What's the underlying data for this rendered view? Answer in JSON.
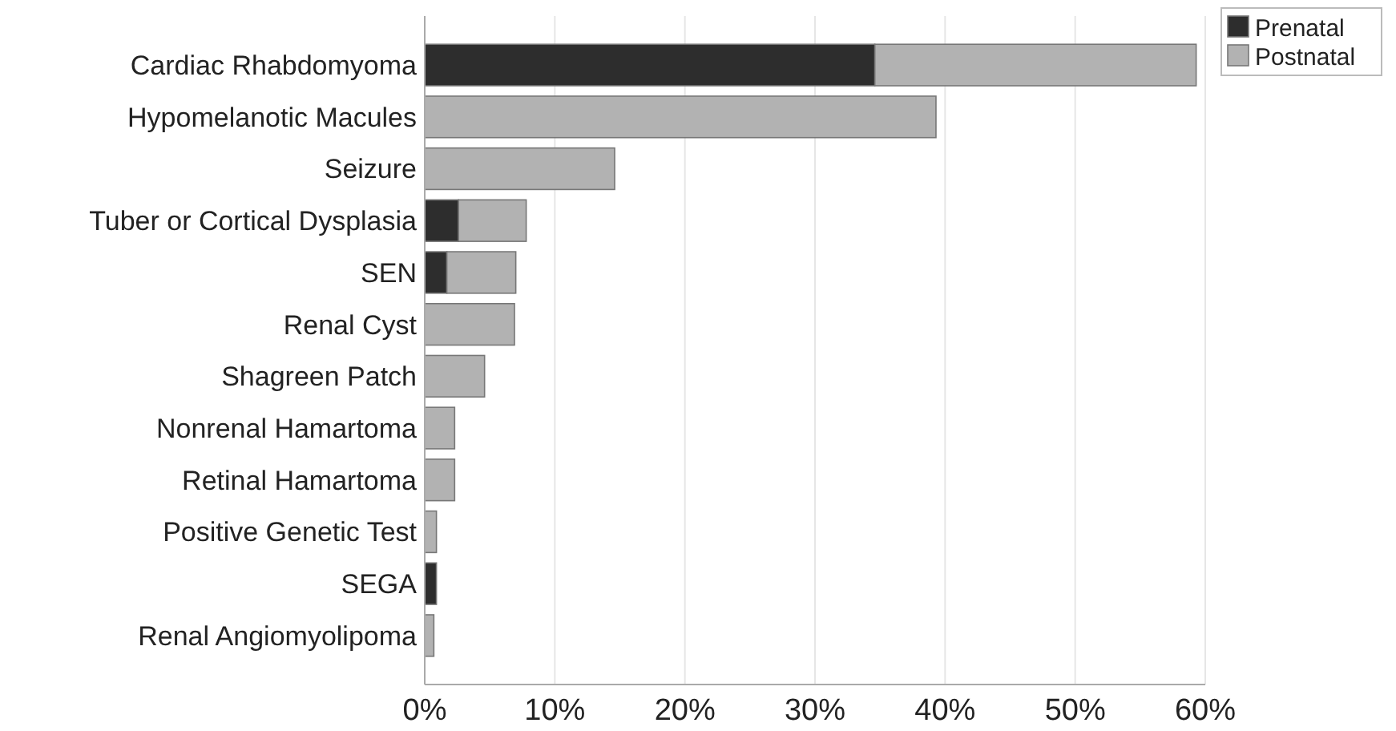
{
  "chart_data": {
    "type": "bar",
    "orientation": "horizontal",
    "stacked": true,
    "categories": [
      "Cardiac Rhabdomyoma",
      "Hypomelanotic Macules",
      "Seizure",
      "Tuber or Cortical Dysplasia",
      "SEN",
      "Renal Cyst",
      "Shagreen Patch",
      "Nonrenal Hamartoma",
      "Retinal Hamartoma",
      "Positive Genetic Test",
      "SEGA",
      "Renal Angiomyolipoma"
    ],
    "series": [
      {
        "name": "Prenatal",
        "color": "#2d2d2d",
        "values": [
          34.6,
          0,
          0,
          2.6,
          1.7,
          0,
          0,
          0,
          0,
          0,
          0.9,
          0
        ]
      },
      {
        "name": "Postnatal",
        "color": "#b2b2b2",
        "values": [
          24.7,
          39.3,
          14.6,
          5.2,
          5.3,
          6.9,
          4.6,
          2.3,
          2.3,
          0.9,
          0,
          0.7
        ]
      }
    ],
    "xlim": [
      0,
      60
    ],
    "xticks": [
      {
        "value": 0,
        "label": "0%"
      },
      {
        "value": 10,
        "label": "10%"
      },
      {
        "value": 20,
        "label": "20%"
      },
      {
        "value": 30,
        "label": "30%"
      },
      {
        "value": 40,
        "label": "40%"
      },
      {
        "value": 50,
        "label": "50%"
      },
      {
        "value": 60,
        "label": "60%"
      }
    ],
    "grid": "x",
    "legend": "top right"
  }
}
